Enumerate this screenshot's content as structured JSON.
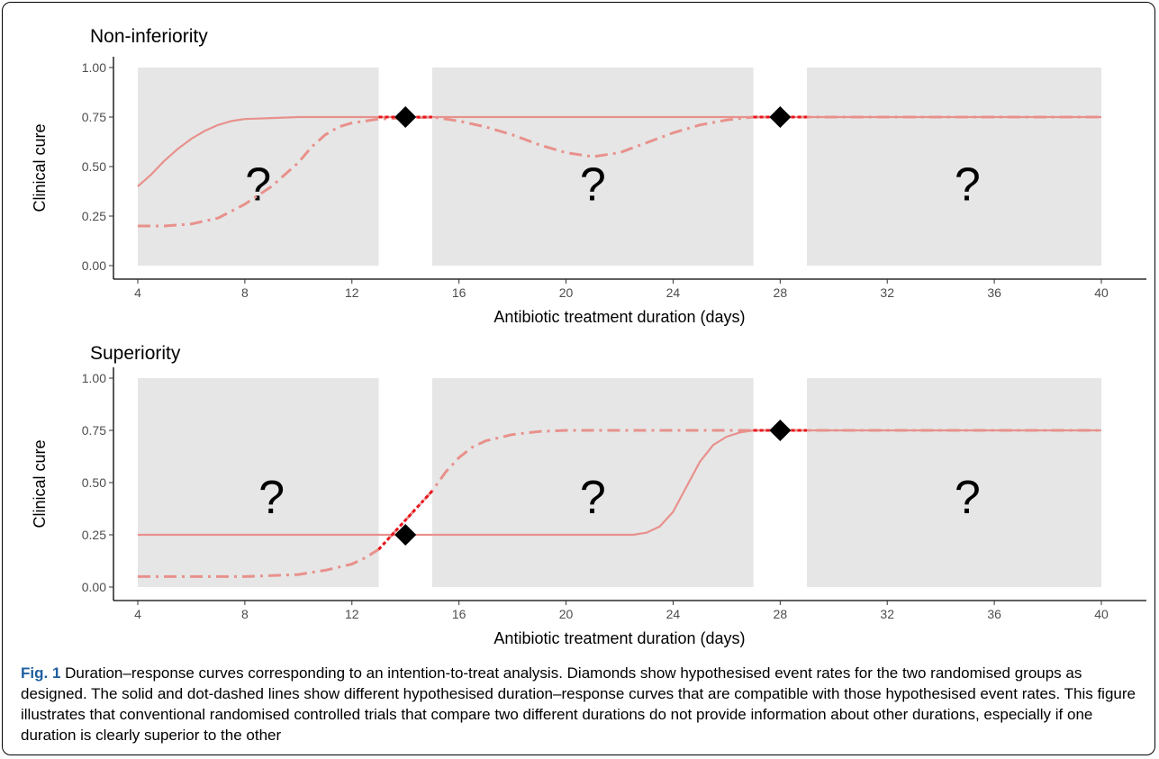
{
  "chart_data": [
    {
      "type": "line",
      "title": "Non-inferiority",
      "xlabel": "Antibiotic treatment duration (days)",
      "ylabel": "Clinical cure",
      "xlim": [
        4,
        40
      ],
      "ylim": [
        0,
        1
      ],
      "x_ticks": [
        4,
        8,
        12,
        16,
        20,
        24,
        28,
        32,
        36,
        40
      ],
      "y_ticks": [
        "0.00",
        "0.25",
        "0.50",
        "0.75",
        "1.00"
      ],
      "shaded_regions": [
        [
          4,
          13
        ],
        [
          15,
          27
        ],
        [
          29,
          40
        ]
      ],
      "unknown_marker": "?",
      "unknown_markers": [
        {
          "x": 8.5,
          "y": 0.42
        },
        {
          "x": 21,
          "y": 0.42
        },
        {
          "x": 35,
          "y": 0.42
        }
      ],
      "diamonds": [
        {
          "x": 14,
          "y": 0.75
        },
        {
          "x": 28,
          "y": 0.75
        }
      ],
      "series": [
        {
          "style": "solid",
          "points": [
            [
              4,
              0.4
            ],
            [
              4.5,
              0.46
            ],
            [
              5,
              0.53
            ],
            [
              5.5,
              0.59
            ],
            [
              6,
              0.64
            ],
            [
              6.5,
              0.68
            ],
            [
              7,
              0.71
            ],
            [
              7.5,
              0.73
            ],
            [
              8,
              0.74
            ],
            [
              9,
              0.745
            ],
            [
              10,
              0.75
            ],
            [
              13,
              0.75
            ],
            [
              15,
              0.75
            ],
            [
              27,
              0.75
            ],
            [
              29,
              0.75
            ],
            [
              40,
              0.75
            ]
          ]
        },
        {
          "style": "dot-dashed",
          "points": [
            [
              4,
              0.2
            ],
            [
              5,
              0.2
            ],
            [
              6,
              0.21
            ],
            [
              7,
              0.24
            ],
            [
              8,
              0.31
            ],
            [
              9,
              0.4
            ],
            [
              10,
              0.52
            ],
            [
              10.5,
              0.6
            ],
            [
              11,
              0.66
            ],
            [
              11.5,
              0.7
            ],
            [
              12,
              0.72
            ],
            [
              13,
              0.74
            ],
            [
              15,
              0.75
            ],
            [
              16,
              0.73
            ],
            [
              17,
              0.7
            ],
            [
              18,
              0.66
            ],
            [
              19,
              0.61
            ],
            [
              20,
              0.57
            ],
            [
              21,
              0.55
            ],
            [
              22,
              0.57
            ],
            [
              23,
              0.62
            ],
            [
              24,
              0.67
            ],
            [
              25,
              0.71
            ],
            [
              26,
              0.735
            ],
            [
              27,
              0.75
            ],
            [
              29,
              0.75
            ],
            [
              40,
              0.75
            ]
          ]
        },
        {
          "style": "bridge",
          "points": [
            [
              13,
              0.75
            ],
            [
              15,
              0.75
            ]
          ]
        },
        {
          "style": "bridge",
          "points": [
            [
              27,
              0.75
            ],
            [
              29,
              0.75
            ]
          ]
        }
      ]
    },
    {
      "type": "line",
      "title": "Superiority",
      "xlabel": "Antibiotic treatment duration (days)",
      "ylabel": "Clinical cure",
      "xlim": [
        4,
        40
      ],
      "ylim": [
        0,
        1
      ],
      "x_ticks": [
        4,
        8,
        12,
        16,
        20,
        24,
        28,
        32,
        36,
        40
      ],
      "y_ticks": [
        "0.00",
        "0.25",
        "0.50",
        "0.75",
        "1.00"
      ],
      "shaded_regions": [
        [
          4,
          13
        ],
        [
          15,
          27
        ],
        [
          29,
          40
        ]
      ],
      "unknown_marker": "?",
      "unknown_markers": [
        {
          "x": 9,
          "y": 0.44
        },
        {
          "x": 21,
          "y": 0.44
        },
        {
          "x": 35,
          "y": 0.44
        }
      ],
      "diamonds": [
        {
          "x": 14,
          "y": 0.25
        },
        {
          "x": 28,
          "y": 0.75
        }
      ],
      "series": [
        {
          "style": "solid",
          "points": [
            [
              4,
              0.25
            ],
            [
              13,
              0.25
            ],
            [
              15,
              0.25
            ],
            [
              22.5,
              0.25
            ],
            [
              23,
              0.26
            ],
            [
              23.5,
              0.29
            ],
            [
              24,
              0.36
            ],
            [
              24.5,
              0.48
            ],
            [
              25,
              0.6
            ],
            [
              25.5,
              0.68
            ],
            [
              26,
              0.72
            ],
            [
              26.5,
              0.74
            ],
            [
              27,
              0.75
            ],
            [
              29,
              0.75
            ],
            [
              40,
              0.75
            ]
          ]
        },
        {
          "style": "dot-dashed",
          "points": [
            [
              4,
              0.05
            ],
            [
              6,
              0.05
            ],
            [
              8,
              0.05
            ],
            [
              10,
              0.06
            ],
            [
              11,
              0.08
            ],
            [
              12,
              0.11
            ],
            [
              12.5,
              0.14
            ],
            [
              13,
              0.18
            ],
            [
              15,
              0.46
            ],
            [
              15.5,
              0.55
            ],
            [
              16,
              0.62
            ],
            [
              16.5,
              0.67
            ],
            [
              17,
              0.7
            ],
            [
              18,
              0.73
            ],
            [
              19,
              0.745
            ],
            [
              20,
              0.75
            ],
            [
              27,
              0.75
            ],
            [
              29,
              0.75
            ],
            [
              40,
              0.75
            ]
          ]
        },
        {
          "style": "bridge",
          "points": [
            [
              13,
              0.18
            ],
            [
              15,
              0.46
            ]
          ]
        },
        {
          "style": "bridge",
          "points": [
            [
              27,
              0.75
            ],
            [
              29,
              0.75
            ]
          ]
        }
      ]
    }
  ],
  "caption": {
    "label": "Fig. 1",
    "text": " Duration–response curves corresponding to an intention-to-treat analysis. Diamonds show hypothesised event rates for the two randomised groups as designed. The solid and dot-dashed lines show different hypothesised duration–response curves that are compatible with those hypothesised event rates. This figure illustrates that conventional randomised controlled trials that compare two different durations do not provide information about other durations, especially if one duration is clearly superior to the other"
  },
  "colors": {
    "curve": "#e8918c",
    "bridge": "#e8141b",
    "shade": "#e6e6e6",
    "diamond": "#000000",
    "caption_label": "#1f5fa0"
  }
}
